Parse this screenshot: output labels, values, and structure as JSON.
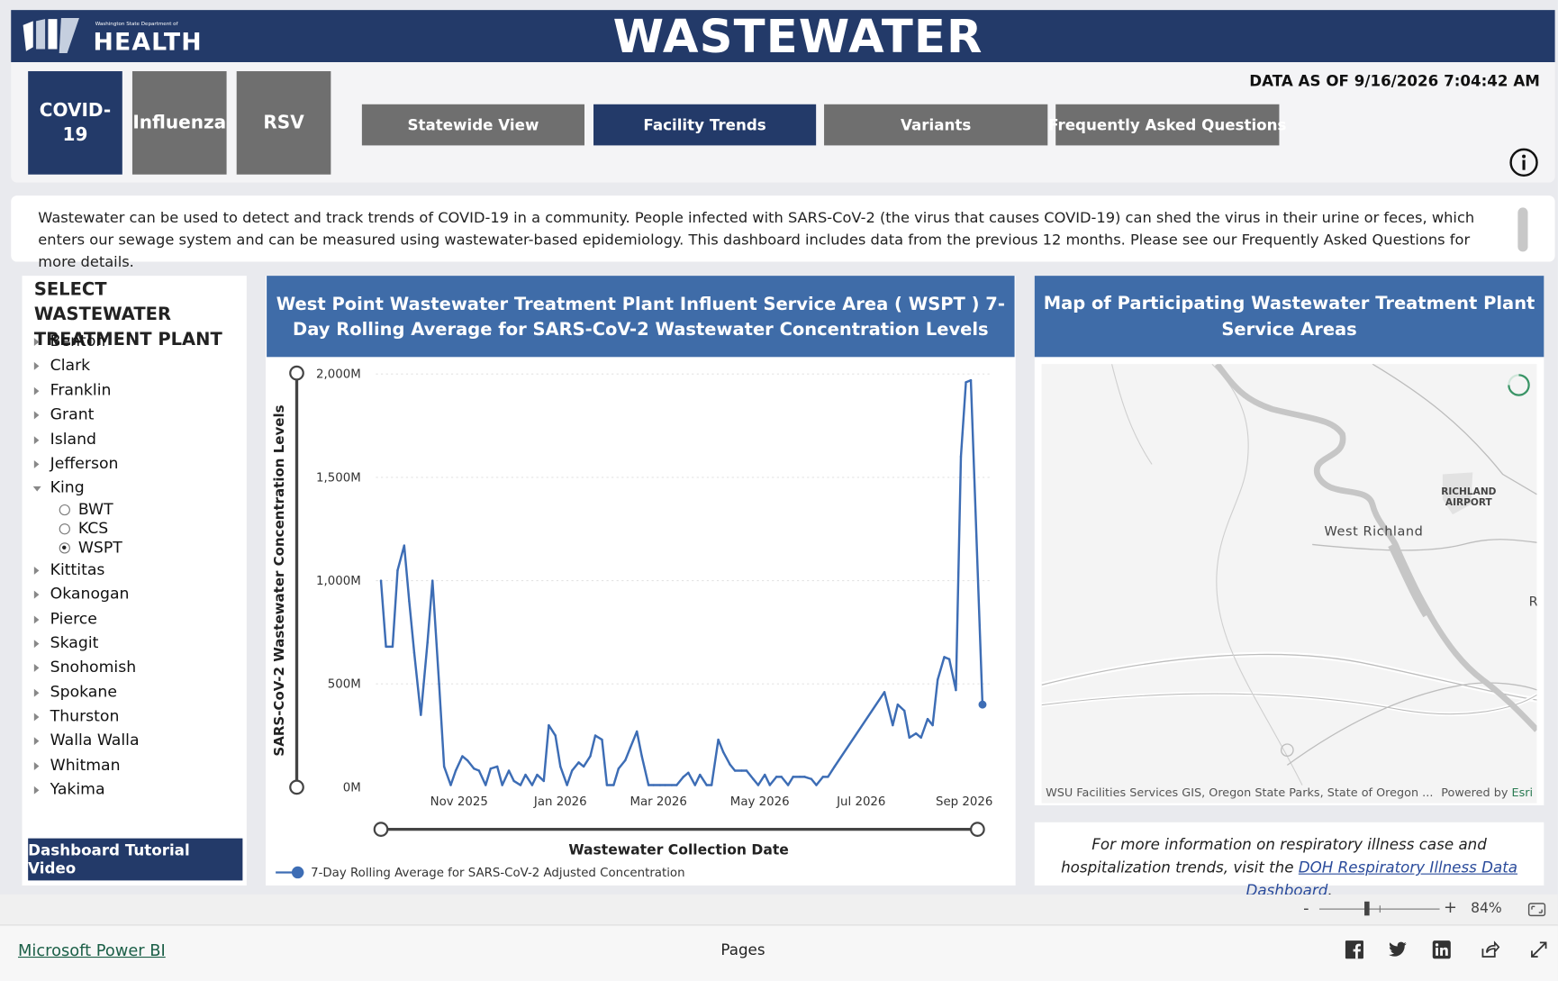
{
  "header": {
    "logo_small": "Washington State Department of",
    "logo_big": "HEALTH",
    "title": "WASTEWATER"
  },
  "disease_tabs": [
    {
      "label": "COVID-19",
      "active": true
    },
    {
      "label": "Influenza",
      "active": false
    },
    {
      "label": "RSV",
      "active": false
    }
  ],
  "nav_buttons": [
    {
      "label": "Statewide View",
      "active": false
    },
    {
      "label": "Facility Trends",
      "active": true
    },
    {
      "label": "Variants",
      "active": false
    },
    {
      "label": "Frequently Asked Questions",
      "active": false
    }
  ],
  "data_as_of": "DATA AS OF 9/16/2026 7:04:42 AM",
  "description": "Wastewater can be used to detect and track trends of COVID-19 in a community. People infected with SARS-CoV-2 (the virus that causes COVID-19) can shed the virus in their urine or feces, which enters our sewage system and can be measured using wastewater-based epidemiology. This dashboard includes data from the previous 12 months. Please see our Frequently Asked Questions for more details.",
  "sidebar": {
    "title": "SELECT WASTEWATER TREATMENT PLANT",
    "counties_before": [
      "Benton",
      "Clark",
      "Franklin",
      "Grant",
      "Island",
      "Jefferson"
    ],
    "expanded_county": "King",
    "facilities": [
      {
        "label": "BWT",
        "selected": false
      },
      {
        "label": "KCS",
        "selected": false
      },
      {
        "label": "WSPT",
        "selected": true
      }
    ],
    "counties_after": [
      "Kittitas",
      "Okanogan",
      "Pierce",
      "Skagit",
      "Snohomish",
      "Spokane",
      "Thurston",
      "Walla Walla",
      "Whitman",
      "Yakima"
    ],
    "tutorial_button": "Dashboard Tutorial Video"
  },
  "chart_panel": {
    "header": "West Point Wastewater Treatment Plant Influent Service Area ( WSPT ) 7-Day Rolling Average for SARS-CoV-2 Wastewater Concentration Levels"
  },
  "chart_data": {
    "type": "line",
    "xlabel": "Wastewater Collection Date",
    "ylabel": "SARS-CoV-2 Wastewater Concentration Levels",
    "y_ticks": [
      "0M",
      "500M",
      "1,000M",
      "1,500M",
      "2,000M"
    ],
    "x_ticks": [
      "Nov 2025",
      "Jan 2026",
      "Mar 2026",
      "May 2026",
      "Jul 2026",
      "Sep 2026"
    ],
    "ylim": [
      0,
      2000
    ],
    "y_unit": "M",
    "grid": true,
    "legend_position": "bottom-left",
    "series": [
      {
        "name": "7-Day Rolling Average for SARS-CoV-2 Adjusted Concentration",
        "color": "#3d6db5",
        "points": [
          [
            "2025-09-15",
            1000
          ],
          [
            "2025-09-18",
            680
          ],
          [
            "2025-09-22",
            680
          ],
          [
            "2025-09-25",
            1050
          ],
          [
            "2025-09-29",
            1170
          ],
          [
            "2025-10-02",
            900
          ],
          [
            "2025-10-05",
            650
          ],
          [
            "2025-10-09",
            350
          ],
          [
            "2025-10-13",
            700
          ],
          [
            "2025-10-16",
            1000
          ],
          [
            "2025-10-20",
            500
          ],
          [
            "2025-10-23",
            100
          ],
          [
            "2025-10-27",
            10
          ],
          [
            "2025-10-30",
            80
          ],
          [
            "2025-11-03",
            150
          ],
          [
            "2025-11-06",
            130
          ],
          [
            "2025-11-10",
            90
          ],
          [
            "2025-11-13",
            80
          ],
          [
            "2025-11-17",
            10
          ],
          [
            "2025-11-20",
            90
          ],
          [
            "2025-11-24",
            100
          ],
          [
            "2025-11-27",
            10
          ],
          [
            "2025-12-01",
            80
          ],
          [
            "2025-12-04",
            30
          ],
          [
            "2025-12-08",
            10
          ],
          [
            "2025-12-11",
            60
          ],
          [
            "2025-12-15",
            10
          ],
          [
            "2025-12-18",
            60
          ],
          [
            "2025-12-22",
            30
          ],
          [
            "2025-12-25",
            300
          ],
          [
            "2025-12-29",
            250
          ],
          [
            "2026-01-01",
            100
          ],
          [
            "2026-01-05",
            10
          ],
          [
            "2026-01-08",
            80
          ],
          [
            "2026-01-12",
            120
          ],
          [
            "2026-01-15",
            100
          ],
          [
            "2026-01-19",
            150
          ],
          [
            "2026-01-22",
            250
          ],
          [
            "2026-01-26",
            230
          ],
          [
            "2026-01-29",
            10
          ],
          [
            "2026-02-02",
            10
          ],
          [
            "2026-02-05",
            90
          ],
          [
            "2026-02-09",
            130
          ],
          [
            "2026-02-12",
            190
          ],
          [
            "2026-02-16",
            270
          ],
          [
            "2026-02-19",
            150
          ],
          [
            "2026-02-23",
            10
          ],
          [
            "2026-02-26",
            10
          ],
          [
            "2026-03-02",
            10
          ],
          [
            "2026-03-05",
            10
          ],
          [
            "2026-03-09",
            10
          ],
          [
            "2026-03-12",
            10
          ],
          [
            "2026-03-16",
            50
          ],
          [
            "2026-03-19",
            70
          ],
          [
            "2026-03-23",
            10
          ],
          [
            "2026-03-26",
            60
          ],
          [
            "2026-03-30",
            10
          ],
          [
            "2026-04-02",
            10
          ],
          [
            "2026-04-06",
            230
          ],
          [
            "2026-04-09",
            170
          ],
          [
            "2026-04-13",
            110
          ],
          [
            "2026-04-16",
            80
          ],
          [
            "2026-04-20",
            80
          ],
          [
            "2026-04-23",
            80
          ],
          [
            "2026-04-27",
            40
          ],
          [
            "2026-04-30",
            10
          ],
          [
            "2026-05-04",
            60
          ],
          [
            "2026-05-07",
            10
          ],
          [
            "2026-05-11",
            50
          ],
          [
            "2026-05-14",
            50
          ],
          [
            "2026-05-18",
            10
          ],
          [
            "2026-05-21",
            50
          ],
          [
            "2026-05-25",
            50
          ],
          [
            "2026-05-28",
            50
          ],
          [
            "2026-06-01",
            40
          ],
          [
            "2026-06-04",
            10
          ],
          [
            "2026-06-08",
            50
          ],
          [
            "2026-06-11",
            50
          ],
          [
            "2026-06-15",
            100
          ],
          [
            "2026-07-15",
            460
          ],
          [
            "2026-07-20",
            300
          ],
          [
            "2026-07-23",
            400
          ],
          [
            "2026-07-27",
            370
          ],
          [
            "2026-07-30",
            240
          ],
          [
            "2026-08-03",
            260
          ],
          [
            "2026-08-06",
            240
          ],
          [
            "2026-08-10",
            330
          ],
          [
            "2026-08-13",
            300
          ],
          [
            "2026-08-16",
            520
          ],
          [
            "2026-08-20",
            630
          ],
          [
            "2026-08-23",
            620
          ],
          [
            "2026-08-27",
            470
          ],
          [
            "2026-08-30",
            1600
          ],
          [
            "2026-09-02",
            1960
          ],
          [
            "2026-09-05",
            1970
          ],
          [
            "2026-09-12",
            400
          ]
        ]
      }
    ]
  },
  "map_panel": {
    "header": "Map of Participating Wastewater Treatment Plant Service Areas",
    "labels": {
      "city": "West Richland",
      "airport": "RICHLAND AIRPORT",
      "edge": "R"
    },
    "attribution": "WSU Facilities Services GIS, Oregon State Parks, State of Oregon ...",
    "powered_by": "Powered by",
    "esri": "Esri"
  },
  "info_panel": {
    "text_before": "For more information on respiratory illness case and hospitalization trends, visit the ",
    "link": "DOH Respiratory Illness Data Dashboard",
    "text_after": "."
  },
  "zoom": {
    "minus": "-",
    "plus": "+",
    "percent": "84%"
  },
  "footer": {
    "powerbi": "Microsoft Power BI",
    "pages": "Pages"
  }
}
